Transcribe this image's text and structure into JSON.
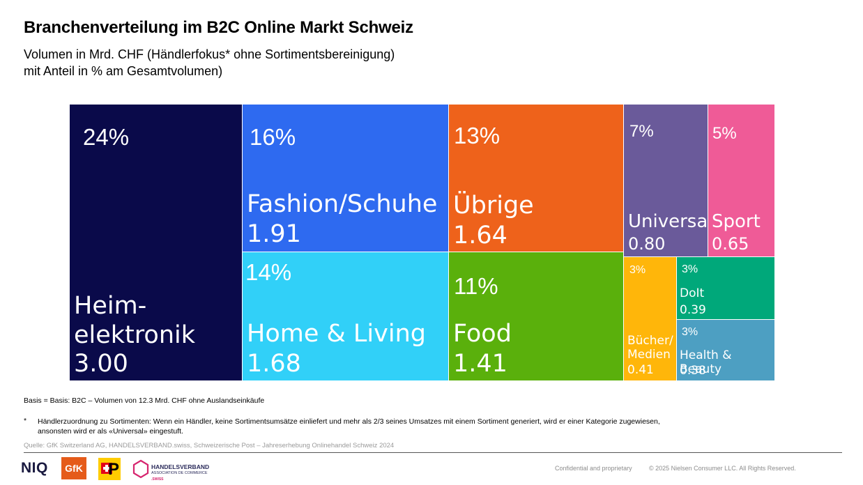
{
  "title": "Branchenverteilung im B2C Online Markt Schweiz",
  "subtitle": {
    "line1": "Volumen in Mrd. CHF (Händlerfokus* ohne Sortimentsbereinigung)",
    "line2": "mit Anteil in % am Gesamtvolumen)"
  },
  "chart_data": {
    "type": "treemap",
    "unit": "Mrd. CHF",
    "items": [
      {
        "label": "Heim-\nelektronik",
        "value": 3.0,
        "value_text": "3.00",
        "percent": "24%",
        "color": "#0a0a4a"
      },
      {
        "label": "Fashion/Schuhe",
        "value": 1.91,
        "value_text": "1.91",
        "percent": "16%",
        "color": "#2e6af0"
      },
      {
        "label": "Home & Living",
        "value": 1.68,
        "value_text": "1.68",
        "percent": "14%",
        "color": "#31d0f8"
      },
      {
        "label": "Übrige",
        "value": 1.64,
        "value_text": "1.64",
        "percent": "13%",
        "color": "#ee621b"
      },
      {
        "label": "Food",
        "value": 1.41,
        "value_text": "1.41",
        "percent": "11%",
        "color": "#5ab00c"
      },
      {
        "label": "Universal",
        "value": 0.8,
        "value_text": "0.80",
        "percent": "7%",
        "color": "#6a5a9a"
      },
      {
        "label": "Sport",
        "value": 0.65,
        "value_text": "0.65",
        "percent": "5%",
        "color": "#ef5b97"
      },
      {
        "label": "Bücher/\nMedien",
        "value": 0.41,
        "value_text": "0.41",
        "percent": "3%",
        "color": "#ffb60a"
      },
      {
        "label": "DoIt",
        "value": 0.39,
        "value_text": "0.39",
        "percent": "3%",
        "color": "#00a87a"
      },
      {
        "label": "Health & Beauty",
        "value": 0.38,
        "value_text": "0.38",
        "percent": "3%",
        "color": "#4d9fc2"
      }
    ]
  },
  "basis": "Basis = Basis: B2C – Volumen von 12.3 Mrd. CHF ohne Auslandseinkäufe",
  "footnote": {
    "marker": "*",
    "text": "Händlerzuordnung zu Sortimenten: Wenn ein Händler, keine Sortimentsumsätze einliefert und mehr als 2/3 seines Umsatzes mit einem Sortiment generiert, wird er einer Kategorie zugewiesen, ansonsten wird er als «Universal» eingestuft."
  },
  "source": "Quelle: GfK Switzerland AG, HANDELSVERBAND.swiss, Schweizerische Post – Jahreserhebung Onlinehandel Schweiz 2024",
  "logos": {
    "niq": "NIQ",
    "gfk": "GfK",
    "post": "P",
    "handelsverband": "HANDELSVERBAND",
    "handelsverband_sub": "ASSOCIATION DE COMMERCE",
    "handelsverband_swiss": ".SWISS"
  },
  "footer": {
    "confidential": "Confidential and proprietary",
    "copyright": "© 2025 Nielsen Consumer LLC. All Rights Reserved."
  }
}
